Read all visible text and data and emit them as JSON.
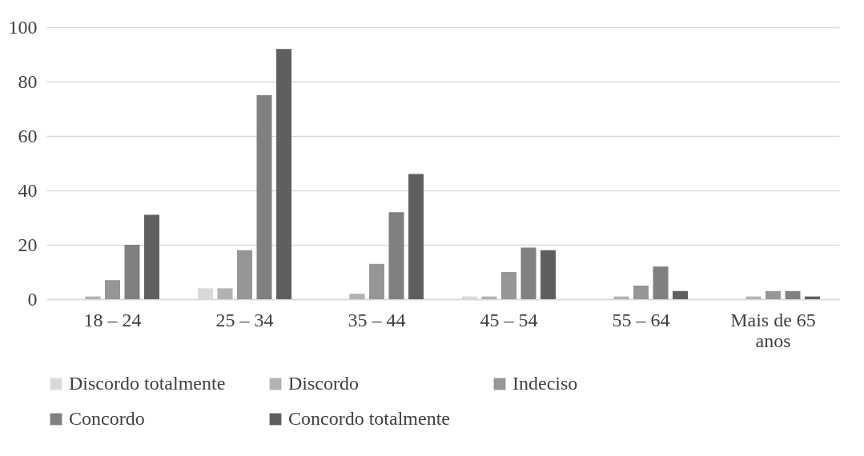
{
  "chart_data": {
    "type": "bar",
    "categories": [
      "18 – 24",
      "25 – 34",
      "35 – 44",
      "45 – 54",
      "55 – 64",
      "Mais de 65 anos"
    ],
    "series": [
      {
        "name": "Discordo totalmente",
        "color": "#d9d9d9",
        "values": [
          0,
          4,
          0,
          1,
          0,
          0
        ]
      },
      {
        "name": "Discordo",
        "color": "#b2b2b2",
        "values": [
          1,
          4,
          2,
          1,
          1,
          1
        ]
      },
      {
        "name": "Indeciso",
        "color": "#969696",
        "values": [
          7,
          18,
          13,
          10,
          5,
          3
        ]
      },
      {
        "name": "Concordo",
        "color": "#808080",
        "values": [
          20,
          75,
          32,
          19,
          12,
          3
        ]
      },
      {
        "name": "Concordo totalmente",
        "color": "#5f5f5f",
        "values": [
          31,
          92,
          46,
          18,
          3,
          1
        ]
      }
    ],
    "ylim": [
      0,
      100
    ],
    "yticks": [
      0,
      20,
      40,
      60,
      80,
      100
    ],
    "grid": "y",
    "legend": "bottom"
  }
}
